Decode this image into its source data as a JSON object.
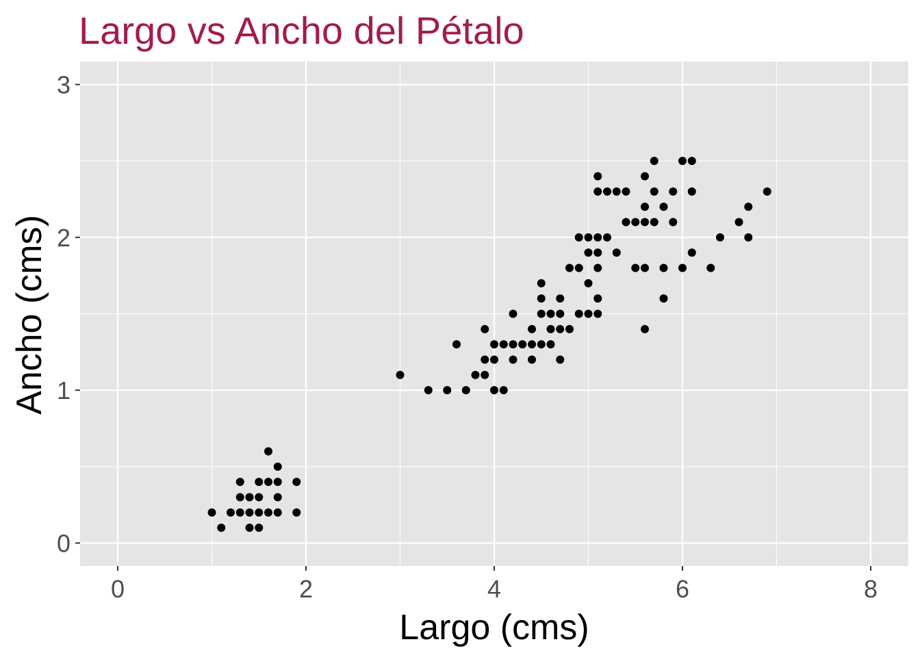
{
  "chart_data": {
    "type": "scatter",
    "title": "Largo vs Ancho del Pétalo",
    "xlabel": "Largo (cms)",
    "ylabel": "Ancho (cms)",
    "xlim": [
      -0.4,
      8.4
    ],
    "ylim": [
      -0.15,
      3.15
    ],
    "x_ticks": [
      0,
      2,
      4,
      6,
      8
    ],
    "x_tick_labels": [
      "0",
      "2",
      "4",
      "6",
      "8"
    ],
    "y_ticks": [
      0,
      1,
      2,
      3
    ],
    "y_tick_labels": [
      "0",
      "1",
      "2",
      "3"
    ],
    "grid": true,
    "legend": "none",
    "colors": {
      "title": "#a31b4f",
      "panel_background": "#e5e5e5",
      "grid": "#ffffff",
      "points": "#000000"
    },
    "points": [
      [
        1.0,
        0.2
      ],
      [
        1.1,
        0.1
      ],
      [
        1.2,
        0.2
      ],
      [
        1.3,
        0.2
      ],
      [
        1.3,
        0.3
      ],
      [
        1.3,
        0.4
      ],
      [
        1.4,
        0.1
      ],
      [
        1.4,
        0.2
      ],
      [
        1.4,
        0.3
      ],
      [
        1.5,
        0.1
      ],
      [
        1.5,
        0.2
      ],
      [
        1.5,
        0.3
      ],
      [
        1.5,
        0.4
      ],
      [
        1.6,
        0.2
      ],
      [
        1.6,
        0.4
      ],
      [
        1.6,
        0.6
      ],
      [
        1.7,
        0.2
      ],
      [
        1.7,
        0.3
      ],
      [
        1.7,
        0.4
      ],
      [
        1.7,
        0.5
      ],
      [
        1.9,
        0.2
      ],
      [
        1.9,
        0.4
      ],
      [
        3.0,
        1.1
      ],
      [
        3.3,
        1.0
      ],
      [
        3.5,
        1.0
      ],
      [
        3.6,
        1.3
      ],
      [
        3.7,
        1.0
      ],
      [
        3.8,
        1.1
      ],
      [
        3.9,
        1.1
      ],
      [
        3.9,
        1.2
      ],
      [
        3.9,
        1.4
      ],
      [
        4.0,
        1.0
      ],
      [
        4.0,
        1.2
      ],
      [
        4.0,
        1.3
      ],
      [
        4.1,
        1.0
      ],
      [
        4.1,
        1.3
      ],
      [
        4.2,
        1.2
      ],
      [
        4.2,
        1.3
      ],
      [
        4.2,
        1.5
      ],
      [
        4.3,
        1.3
      ],
      [
        4.4,
        1.2
      ],
      [
        4.4,
        1.3
      ],
      [
        4.4,
        1.4
      ],
      [
        4.5,
        1.3
      ],
      [
        4.5,
        1.5
      ],
      [
        4.5,
        1.6
      ],
      [
        4.5,
        1.7
      ],
      [
        4.6,
        1.3
      ],
      [
        4.6,
        1.4
      ],
      [
        4.6,
        1.5
      ],
      [
        4.7,
        1.2
      ],
      [
        4.7,
        1.4
      ],
      [
        4.7,
        1.5
      ],
      [
        4.7,
        1.6
      ],
      [
        4.8,
        1.4
      ],
      [
        4.8,
        1.8
      ],
      [
        4.9,
        1.5
      ],
      [
        4.9,
        1.8
      ],
      [
        4.9,
        2.0
      ],
      [
        5.0,
        1.5
      ],
      [
        5.0,
        1.7
      ],
      [
        5.0,
        1.9
      ],
      [
        5.0,
        2.0
      ],
      [
        5.1,
        1.5
      ],
      [
        5.1,
        1.6
      ],
      [
        5.1,
        1.8
      ],
      [
        5.1,
        1.9
      ],
      [
        5.1,
        2.0
      ],
      [
        5.1,
        2.3
      ],
      [
        5.1,
        2.4
      ],
      [
        5.2,
        2.0
      ],
      [
        5.2,
        2.3
      ],
      [
        5.3,
        1.9
      ],
      [
        5.3,
        2.3
      ],
      [
        5.4,
        2.1
      ],
      [
        5.4,
        2.3
      ],
      [
        5.5,
        1.8
      ],
      [
        5.5,
        2.1
      ],
      [
        5.6,
        1.4
      ],
      [
        5.6,
        1.8
      ],
      [
        5.6,
        2.1
      ],
      [
        5.6,
        2.2
      ],
      [
        5.6,
        2.4
      ],
      [
        5.7,
        2.1
      ],
      [
        5.7,
        2.3
      ],
      [
        5.7,
        2.5
      ],
      [
        5.8,
        1.6
      ],
      [
        5.8,
        1.8
      ],
      [
        5.8,
        2.2
      ],
      [
        5.9,
        2.1
      ],
      [
        5.9,
        2.3
      ],
      [
        6.0,
        1.8
      ],
      [
        6.0,
        2.5
      ],
      [
        6.1,
        1.9
      ],
      [
        6.1,
        2.3
      ],
      [
        6.1,
        2.5
      ],
      [
        6.3,
        1.8
      ],
      [
        6.4,
        2.0
      ],
      [
        6.6,
        2.1
      ],
      [
        6.7,
        2.0
      ],
      [
        6.7,
        2.2
      ],
      [
        6.9,
        2.3
      ]
    ]
  }
}
